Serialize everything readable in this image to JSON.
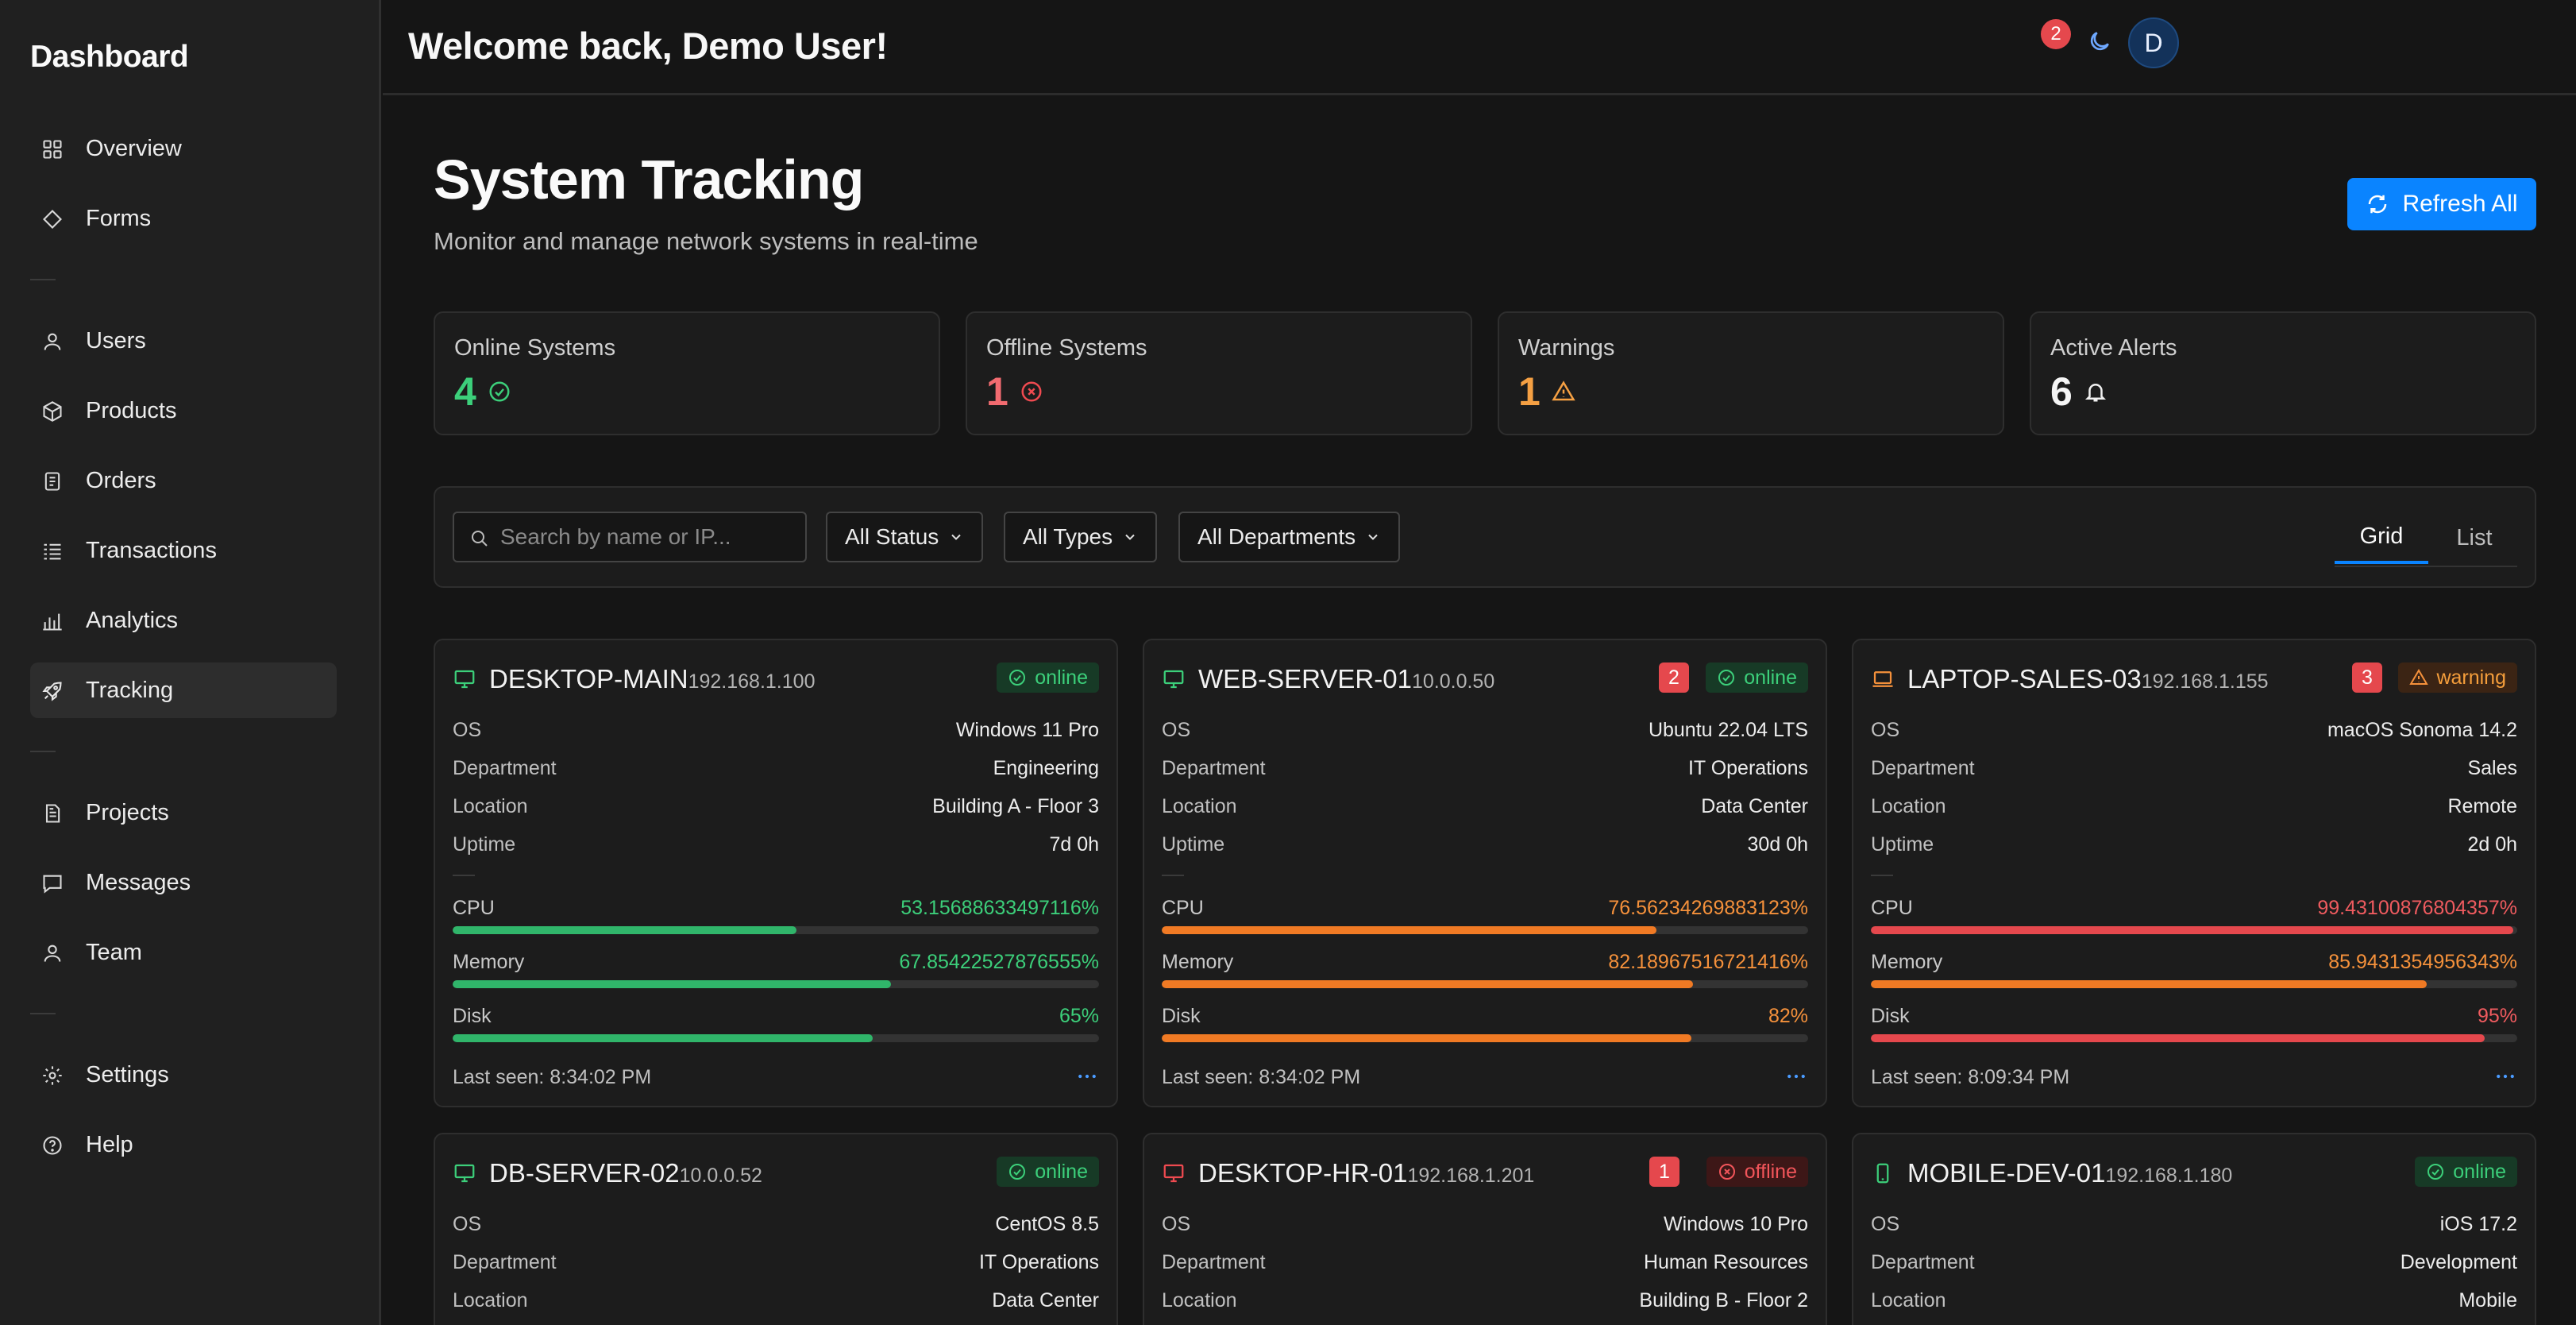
{
  "sidebar": {
    "title": "Dashboard",
    "items": [
      {
        "label": "Overview",
        "icon": "grid-icon"
      },
      {
        "label": "Forms",
        "icon": "diamond-icon"
      },
      {
        "label": "Users",
        "icon": "user-icon"
      },
      {
        "label": "Products",
        "icon": "box-icon"
      },
      {
        "label": "Orders",
        "icon": "document-icon"
      },
      {
        "label": "Transactions",
        "icon": "list-icon"
      },
      {
        "label": "Analytics",
        "icon": "bar-chart-icon"
      },
      {
        "label": "Tracking",
        "icon": "rocket-icon",
        "active": true
      },
      {
        "label": "Projects",
        "icon": "file-icon"
      },
      {
        "label": "Messages",
        "icon": "message-icon"
      },
      {
        "label": "Team",
        "icon": "user-icon"
      },
      {
        "label": "Settings",
        "icon": "gear-icon"
      },
      {
        "label": "Help",
        "icon": "help-icon"
      }
    ]
  },
  "header": {
    "welcome": "Welcome back, Demo User!",
    "notification_count": "2",
    "avatar_initial": "D"
  },
  "page": {
    "title": "System Tracking",
    "subtitle": "Monitor and manage network systems in real-time",
    "refresh_label": "Refresh All"
  },
  "stats": [
    {
      "label": "Online Systems",
      "value": "4",
      "color": "#3ccf7a",
      "icon": "check-circle-icon"
    },
    {
      "label": "Offline Systems",
      "value": "1",
      "color": "#f26b70",
      "icon": "x-circle-icon"
    },
    {
      "label": "Warnings",
      "value": "1",
      "color": "#f5a043",
      "icon": "warning-icon"
    },
    {
      "label": "Active Alerts",
      "value": "6",
      "color": "#f5f5f5",
      "icon": "bell-icon"
    }
  ],
  "filters": {
    "search_placeholder": "Search by name or IP...",
    "status": "All Status",
    "types": "All Types",
    "departments": "All Departments",
    "view_grid": "Grid",
    "view_list": "List"
  },
  "labels": {
    "os": "OS",
    "department": "Department",
    "location": "Location",
    "uptime": "Uptime",
    "cpu": "CPU",
    "memory": "Memory",
    "disk": "Disk",
    "last_seen_prefix": "Last seen: "
  },
  "systems": [
    {
      "name": "DESKTOP-MAIN",
      "ip": "192.168.1.100",
      "device": "desktop-icon",
      "status": "online",
      "alerts": "",
      "os": "Windows 11 Pro",
      "department": "Engineering",
      "location": "Building A - Floor 3",
      "uptime": "7d 0h",
      "cpu": "53.15688633497116%",
      "cpu_pct": 53.16,
      "memory": "67.85422527876555%",
      "memory_pct": 67.85,
      "disk": "65%",
      "disk_pct": 65,
      "last_seen": "Last seen: 8:34:02 PM"
    },
    {
      "name": "WEB-SERVER-01",
      "ip": "10.0.0.50",
      "device": "desktop-icon",
      "status": "online",
      "alerts": "2",
      "os": "Ubuntu 22.04 LTS",
      "department": "IT Operations",
      "location": "Data Center",
      "uptime": "30d 0h",
      "cpu": "76.56234269883123%",
      "cpu_pct": 76.56,
      "memory": "82.18967516721416%",
      "memory_pct": 82.19,
      "disk": "82%",
      "disk_pct": 82,
      "last_seen": "Last seen: 8:34:02 PM"
    },
    {
      "name": "LAPTOP-SALES-03",
      "ip": "192.168.1.155",
      "device": "laptop-icon",
      "status": "warning",
      "alerts": "3",
      "os": "macOS Sonoma 14.2",
      "department": "Sales",
      "location": "Remote",
      "uptime": "2d 0h",
      "cpu": "99.43100876804357%",
      "cpu_pct": 99.43,
      "memory": "85.9431354956343%",
      "memory_pct": 85.94,
      "disk": "95%",
      "disk_pct": 95,
      "last_seen": "Last seen: 8:09:34 PM"
    },
    {
      "name": "DB-SERVER-02",
      "ip": "10.0.0.52",
      "device": "desktop-icon",
      "status": "online",
      "alerts": "",
      "os": "CentOS 8.5",
      "department": "IT Operations",
      "location": "Data Center"
    },
    {
      "name": "DESKTOP-HR-01",
      "ip": "192.168.1.201",
      "device": "desktop-icon",
      "status": "offline",
      "alerts": "1",
      "os": "Windows 10 Pro",
      "department": "Human Resources",
      "location": "Building B - Floor 2"
    },
    {
      "name": "MOBILE-DEV-01",
      "ip": "192.168.1.180",
      "device": "mobile-icon",
      "status": "online",
      "alerts": "",
      "os": "iOS 17.2",
      "department": "Development",
      "location": "Mobile"
    }
  ],
  "colors": {
    "accent": "#0a84ff",
    "online": "#3ccf7a",
    "warning": "#f5913b",
    "offline": "#ef5b5f"
  }
}
